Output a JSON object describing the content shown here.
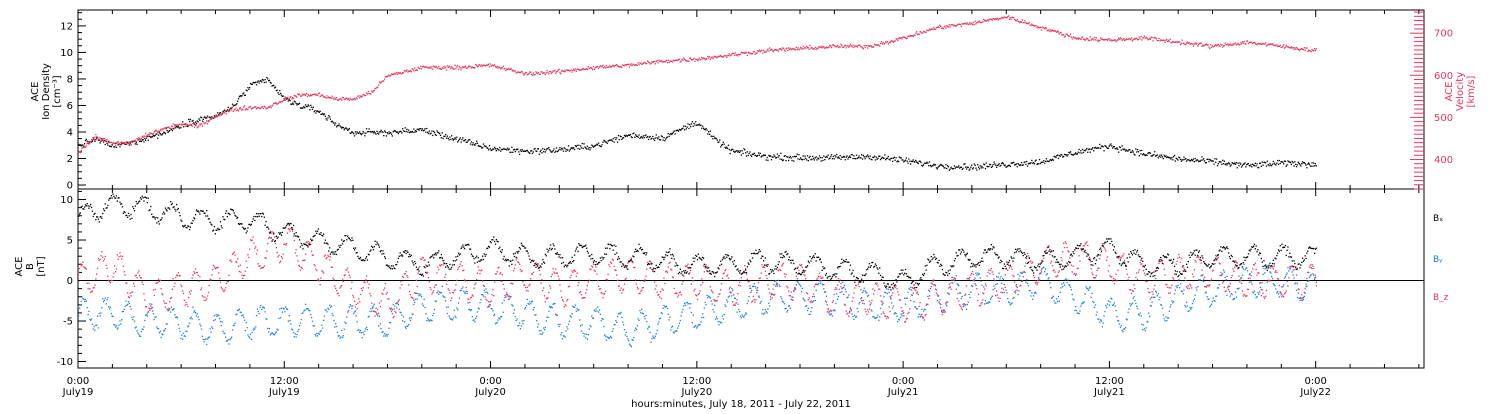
{
  "colors": {
    "black": "#000000",
    "pink": "#e8365c",
    "blue": "#1a7fe0"
  },
  "xaxis": {
    "title": "hours:minutes, July 18, 2011 - July 22, 2011",
    "ticks": [
      {
        "time": "0:00",
        "day": "July19",
        "hours": 0
      },
      {
        "time": "12:00",
        "day": "July19",
        "hours": 12
      },
      {
        "time": "0:00",
        "day": "July20",
        "hours": 24
      },
      {
        "time": "12:00",
        "day": "July20",
        "hours": 36
      },
      {
        "time": "0:00",
        "day": "July21",
        "hours": 48
      },
      {
        "time": "12:00",
        "day": "July21",
        "hours": 60
      },
      {
        "time": "0:00",
        "day": "July22",
        "hours": 72
      }
    ],
    "range_hours": [
      0,
      78.3
    ],
    "minor_tick_hours": 2
  },
  "chart_data": [
    {
      "type": "scatter",
      "left_axis": {
        "label_lines": [
          "ACE",
          "Ion Density",
          "[cm⁻³]"
        ],
        "range": [
          -0.3,
          13.2
        ],
        "ticks": [
          "0",
          "2",
          "4",
          "6",
          "8",
          "10",
          "12"
        ]
      },
      "right_axis": {
        "label_lines": [
          "ACE",
          "Velocity",
          "[km/s]"
        ],
        "range": [
          330,
          755
        ],
        "ticks": [
          "400",
          "500",
          "600",
          "700"
        ]
      },
      "series": [
        {
          "axis": "left",
          "color": "black",
          "x_hours": [
            0,
            1,
            2,
            3,
            4,
            5,
            6,
            7,
            8,
            9,
            10,
            11,
            12,
            13,
            14,
            15,
            16,
            18,
            20,
            22,
            24,
            26,
            28,
            30,
            32,
            34,
            36,
            37,
            38,
            40,
            42,
            44,
            46,
            48,
            50,
            52,
            54,
            56,
            58,
            60,
            62,
            64,
            66,
            68,
            70,
            72
          ],
          "values": [
            3.0,
            3.5,
            3.0,
            3.2,
            3.6,
            4.0,
            4.6,
            5.0,
            5.2,
            6.0,
            7.5,
            8.0,
            6.5,
            6.0,
            5.6,
            4.6,
            4.0,
            4.0,
            4.2,
            3.5,
            2.8,
            2.6,
            2.7,
            3.0,
            3.8,
            3.6,
            4.8,
            3.5,
            2.6,
            2.2,
            2.1,
            2.1,
            2.2,
            1.9,
            1.5,
            1.4,
            1.6,
            1.8,
            2.5,
            3.0,
            2.4,
            2.0,
            1.8,
            1.5,
            1.7,
            1.6
          ]
        },
        {
          "axis": "right",
          "color": "pink",
          "x_hours": [
            0,
            1,
            2,
            3,
            4,
            5,
            6,
            7,
            8,
            9,
            10,
            11,
            12,
            13,
            14,
            15,
            16,
            17,
            18,
            20,
            22,
            24,
            26,
            28,
            30,
            32,
            34,
            36,
            38,
            40,
            42,
            44,
            46,
            48,
            50,
            52,
            54,
            56,
            58,
            60,
            62,
            64,
            66,
            68,
            70,
            72
          ],
          "values": [
            420,
            455,
            440,
            440,
            460,
            475,
            485,
            480,
            505,
            520,
            525,
            525,
            545,
            555,
            555,
            545,
            545,
            560,
            600,
            620,
            620,
            625,
            605,
            610,
            620,
            625,
            635,
            640,
            650,
            660,
            665,
            670,
            670,
            690,
            715,
            725,
            740,
            715,
            690,
            685,
            690,
            680,
            670,
            680,
            670,
            660
          ]
        }
      ]
    },
    {
      "type": "scatter",
      "left_axis": {
        "label_lines": [
          "ACE",
          "B",
          "[nT]"
        ],
        "range": [
          -10.8,
          11.3
        ],
        "ticks": [
          "-10",
          "-5",
          "0",
          "5",
          "10"
        ],
        "zero_line": true
      },
      "legend": [
        "Bₓ",
        "Bᵧ",
        "B_z"
      ],
      "series": [
        {
          "name": "Bₓ",
          "color": "black",
          "x_hours": [
            0,
            2,
            4,
            6,
            8,
            10,
            12,
            14,
            16,
            18,
            20,
            22,
            24,
            26,
            28,
            30,
            32,
            34,
            36,
            38,
            40,
            42,
            44,
            46,
            48,
            50,
            52,
            54,
            56,
            58,
            60,
            62,
            64,
            66,
            68,
            70,
            72
          ],
          "values": [
            8,
            9.5,
            9,
            8,
            7.5,
            7.5,
            6,
            5,
            4,
            3,
            2,
            3,
            4,
            3,
            3,
            3.5,
            3,
            2.5,
            2,
            2,
            2.5,
            2,
            1.5,
            1,
            0,
            2,
            3,
            3,
            2.5,
            3,
            4,
            2,
            2,
            3,
            3,
            3,
            3
          ]
        },
        {
          "name": "Bᵧ",
          "color": "blue",
          "x_hours": [
            0,
            2,
            4,
            6,
            8,
            10,
            12,
            14,
            16,
            18,
            20,
            22,
            24,
            26,
            28,
            30,
            32,
            34,
            36,
            38,
            40,
            42,
            44,
            46,
            48,
            50,
            52,
            54,
            56,
            58,
            60,
            62,
            64,
            66,
            68,
            70,
            72
          ],
          "values": [
            -4,
            -4,
            -5,
            -5,
            -6,
            -5,
            -5,
            -5,
            -5,
            -5,
            -3,
            -3,
            -3,
            -4,
            -5,
            -5,
            -6,
            -5,
            -4,
            -3,
            -2,
            -2,
            -2,
            -3,
            -3,
            -2,
            -1,
            -1,
            0,
            -2,
            -4,
            -4,
            -2,
            -1,
            0,
            0,
            -1
          ]
        },
        {
          "name": "B_z",
          "color": "pink",
          "x_hours": [
            0,
            2,
            4,
            6,
            8,
            10,
            12,
            14,
            16,
            18,
            20,
            22,
            24,
            26,
            28,
            30,
            32,
            34,
            36,
            38,
            40,
            42,
            44,
            46,
            48,
            50,
            52,
            54,
            56,
            58,
            60,
            62,
            64,
            66,
            68,
            70,
            72
          ],
          "values": [
            0,
            2,
            -2,
            -1,
            0,
            3,
            5,
            2,
            -1,
            -3,
            1,
            0,
            -1,
            1,
            -1,
            0,
            1,
            0,
            0,
            -1,
            0,
            0,
            -2,
            -2,
            -3,
            -2,
            -1,
            0,
            2,
            3,
            2,
            0,
            1,
            1,
            0,
            0,
            0
          ]
        }
      ]
    }
  ]
}
